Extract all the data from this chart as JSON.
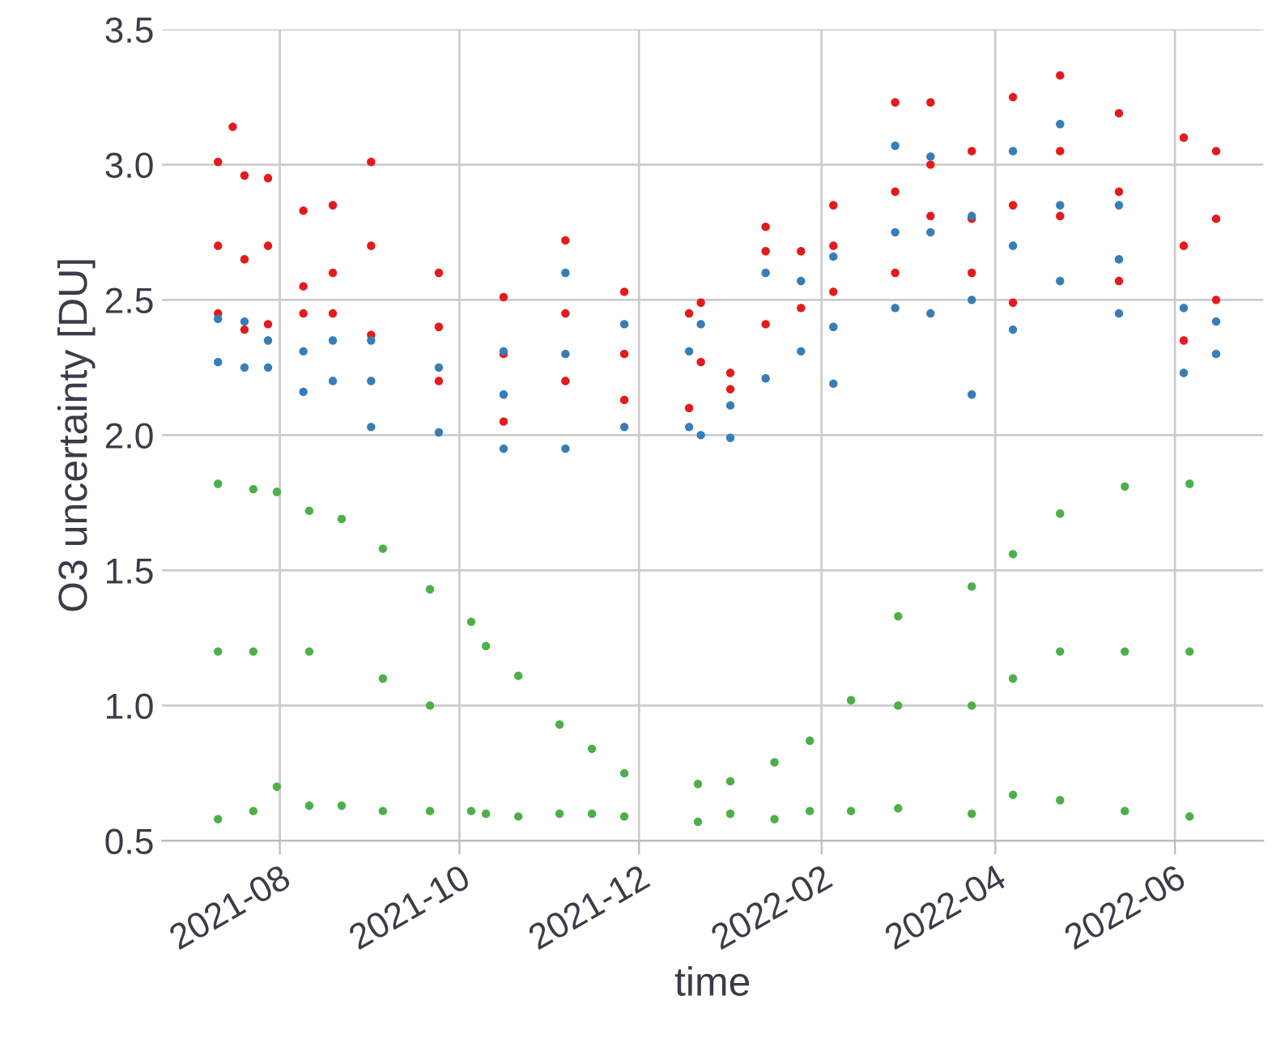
{
  "chart_data": {
    "type": "scatter",
    "xlabel": "time",
    "ylabel": "O3 uncertainty [DU]",
    "xlim": [
      "2021-06-22",
      "2022-07-01"
    ],
    "ylim": [
      0.5,
      3.5
    ],
    "xticks": [
      {
        "value": "2021-08-01",
        "label": "2021-08"
      },
      {
        "value": "2021-10-01",
        "label": "2021-10"
      },
      {
        "value": "2021-12-01",
        "label": "2021-12"
      },
      {
        "value": "2022-02-01",
        "label": "2022-02"
      },
      {
        "value": "2022-04-01",
        "label": "2022-04"
      },
      {
        "value": "2022-06-01",
        "label": "2022-06"
      }
    ],
    "yticks": [
      0.5,
      {
        "value": 1,
        "label": "1.0"
      },
      1.5,
      {
        "value": 2,
        "label": "2.0"
      },
      2.5,
      {
        "value": 3,
        "label": "3.0"
      },
      3.5
    ],
    "grid": true,
    "marker": "circle",
    "series": [
      {
        "color": "#e41a1c",
        "x": [
          "2021-07-11",
          "2021-07-11",
          "2021-07-11",
          "2021-07-16",
          "2021-07-20",
          "2021-07-20",
          "2021-07-20",
          "2021-07-28",
          "2021-07-28",
          "2021-07-28",
          "2021-08-09",
          "2021-08-09",
          "2021-08-09",
          "2021-08-19",
          "2021-08-19",
          "2021-08-19",
          "2021-09-01",
          "2021-09-01",
          "2021-09-01",
          "2021-09-24",
          "2021-09-24",
          "2021-09-24",
          "2021-10-16",
          "2021-10-16",
          "2021-10-16",
          "2021-11-06",
          "2021-11-06",
          "2021-11-06",
          "2021-11-26",
          "2021-11-26",
          "2021-11-26",
          "2021-12-18",
          "2021-12-18",
          "2021-12-22",
          "2021-12-22",
          "2022-01-01",
          "2022-01-01",
          "2022-01-13",
          "2022-01-13",
          "2022-01-13",
          "2022-01-25",
          "2022-01-25",
          "2022-02-05",
          "2022-02-05",
          "2022-02-05",
          "2022-02-26",
          "2022-02-26",
          "2022-02-26",
          "2022-03-10",
          "2022-03-10",
          "2022-03-10",
          "2022-03-24",
          "2022-03-24",
          "2022-03-24",
          "2022-04-07",
          "2022-04-07",
          "2022-04-07",
          "2022-04-23",
          "2022-04-23",
          "2022-04-23",
          "2022-05-13",
          "2022-05-13",
          "2022-05-13",
          "2022-06-04",
          "2022-06-04",
          "2022-06-04",
          "2022-06-15",
          "2022-06-15",
          "2022-06-15"
        ],
        "values": [
          2.45,
          2.7,
          3.01,
          3.14,
          2.39,
          2.65,
          2.96,
          2.41,
          2.7,
          2.95,
          2.45,
          2.55,
          2.83,
          2.45,
          2.6,
          2.85,
          2.37,
          2.7,
          3.01,
          2.2,
          2.4,
          2.6,
          2.05,
          2.3,
          2.51,
          2.2,
          2.45,
          2.72,
          2.13,
          2.3,
          2.53,
          2.1,
          2.45,
          2.27,
          2.49,
          2.17,
          2.23,
          2.41,
          2.68,
          2.77,
          2.47,
          2.68,
          2.53,
          2.7,
          2.85,
          2.6,
          2.9,
          3.23,
          2.81,
          3.0,
          3.23,
          2.6,
          2.8,
          3.05,
          2.49,
          2.85,
          3.25,
          2.81,
          3.05,
          3.33,
          2.57,
          2.9,
          3.19,
          2.35,
          2.7,
          3.1,
          2.5,
          2.8,
          3.05
        ]
      },
      {
        "color": "#377eb8",
        "x": [
          "2021-07-11",
          "2021-07-11",
          "2021-07-20",
          "2021-07-20",
          "2021-07-28",
          "2021-07-28",
          "2021-08-09",
          "2021-08-09",
          "2021-08-19",
          "2021-08-19",
          "2021-09-01",
          "2021-09-01",
          "2021-09-01",
          "2021-09-24",
          "2021-09-24",
          "2021-10-16",
          "2021-10-16",
          "2021-10-16",
          "2021-11-06",
          "2021-11-06",
          "2021-11-06",
          "2021-11-26",
          "2021-11-26",
          "2021-12-18",
          "2021-12-18",
          "2021-12-22",
          "2021-12-22",
          "2022-01-01",
          "2022-01-01",
          "2022-01-13",
          "2022-01-13",
          "2022-01-25",
          "2022-01-25",
          "2022-02-05",
          "2022-02-05",
          "2022-02-05",
          "2022-02-26",
          "2022-02-26",
          "2022-02-26",
          "2022-03-10",
          "2022-03-10",
          "2022-03-10",
          "2022-03-24",
          "2022-03-24",
          "2022-03-24",
          "2022-04-07",
          "2022-04-07",
          "2022-04-07",
          "2022-04-23",
          "2022-04-23",
          "2022-04-23",
          "2022-05-13",
          "2022-05-13",
          "2022-05-13",
          "2022-06-04",
          "2022-06-04",
          "2022-06-15",
          "2022-06-15"
        ],
        "values": [
          2.27,
          2.43,
          2.25,
          2.42,
          2.25,
          2.35,
          2.16,
          2.31,
          2.2,
          2.35,
          2.03,
          2.2,
          2.35,
          2.01,
          2.25,
          1.95,
          2.15,
          2.31,
          1.95,
          2.3,
          2.6,
          2.03,
          2.41,
          2.03,
          2.31,
          2.0,
          2.41,
          1.99,
          2.11,
          2.21,
          2.6,
          2.31,
          2.57,
          2.19,
          2.4,
          2.66,
          2.47,
          2.75,
          3.07,
          2.45,
          2.75,
          3.03,
          2.15,
          2.5,
          2.81,
          2.39,
          2.7,
          3.05,
          2.57,
          2.85,
          3.15,
          2.45,
          2.65,
          2.85,
          2.23,
          2.47,
          2.3,
          2.42
        ]
      },
      {
        "color": "#4daf4a",
        "x": [
          "2021-07-11",
          "2021-07-11",
          "2021-07-11",
          "2021-07-23",
          "2021-07-23",
          "2021-07-23",
          "2021-07-31",
          "2021-07-31",
          "2021-08-11",
          "2021-08-11",
          "2021-08-11",
          "2021-08-22",
          "2021-08-22",
          "2021-09-05",
          "2021-09-05",
          "2021-09-05",
          "2021-09-21",
          "2021-09-21",
          "2021-09-21",
          "2021-10-05",
          "2021-10-05",
          "2021-10-10",
          "2021-10-10",
          "2021-10-21",
          "2021-10-21",
          "2021-11-04",
          "2021-11-04",
          "2021-11-15",
          "2021-11-15",
          "2021-11-26",
          "2021-11-26",
          "2021-12-21",
          "2021-12-21",
          "2022-01-01",
          "2022-01-01",
          "2022-01-16",
          "2022-01-16",
          "2022-01-28",
          "2022-01-28",
          "2022-02-11",
          "2022-02-11",
          "2022-02-27",
          "2022-02-27",
          "2022-02-27",
          "2022-03-24",
          "2022-03-24",
          "2022-03-24",
          "2022-04-07",
          "2022-04-07",
          "2022-04-07",
          "2022-04-23",
          "2022-04-23",
          "2022-04-23",
          "2022-05-15",
          "2022-05-15",
          "2022-05-15",
          "2022-06-06",
          "2022-06-06",
          "2022-06-06"
        ],
        "values": [
          0.58,
          1.2,
          1.82,
          0.61,
          1.2,
          1.8,
          0.7,
          1.79,
          0.63,
          1.2,
          1.72,
          0.63,
          1.69,
          0.61,
          1.1,
          1.58,
          0.61,
          1.0,
          1.43,
          0.61,
          1.31,
          0.6,
          1.22,
          0.59,
          1.11,
          0.6,
          0.93,
          0.6,
          0.84,
          0.59,
          0.75,
          0.57,
          0.71,
          0.6,
          0.72,
          0.58,
          0.79,
          0.61,
          0.87,
          0.61,
          1.02,
          0.62,
          1.0,
          1.33,
          0.6,
          1.0,
          1.44,
          0.67,
          1.1,
          1.56,
          0.65,
          1.2,
          1.71,
          0.61,
          1.2,
          1.81,
          0.59,
          1.2,
          1.82
        ]
      }
    ]
  }
}
